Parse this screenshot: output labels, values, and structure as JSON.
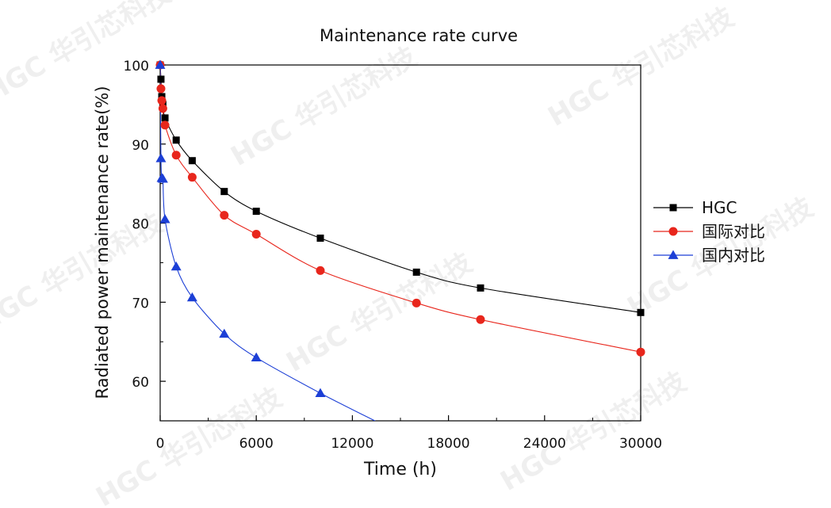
{
  "watermark": {
    "text": "HGC 华引芯科技"
  },
  "chart_data": {
    "type": "line",
    "title": "Maintenance rate curve",
    "xlabel": "Time (h)",
    "ylabel": "Radiated power maintenance rate(%)",
    "xlim": [
      0,
      30000
    ],
    "ylim": [
      55,
      100
    ],
    "xticks": [
      0,
      6000,
      12000,
      18000,
      24000,
      30000
    ],
    "yticks": [
      60,
      70,
      80,
      90,
      100
    ],
    "grid": false,
    "legend_position": "right",
    "series": [
      {
        "name": "HGC",
        "color": "#000000",
        "marker": "square",
        "x": [
          0,
          48,
          100,
          168,
          300,
          1000,
          2000,
          4000,
          6000,
          10000,
          16000,
          20000,
          30000
        ],
        "y": [
          100,
          98.2,
          96.0,
          95.0,
          93.3,
          90.5,
          87.9,
          84.0,
          81.5,
          78.1,
          73.8,
          71.8,
          68.7
        ]
      },
      {
        "name": "国际对比",
        "color": "#e8261c",
        "marker": "circle",
        "x": [
          0,
          48,
          100,
          168,
          300,
          1000,
          2000,
          4000,
          6000,
          10000,
          16000,
          20000,
          30000
        ],
        "y": [
          100,
          97.0,
          95.5,
          94.5,
          92.4,
          88.6,
          85.8,
          81.0,
          78.6,
          74.0,
          69.9,
          67.8,
          63.7
        ],
        "marker_fill": "#e8261c"
      },
      {
        "name": "国内对比",
        "color": "#1c3fd6",
        "marker": "triangle",
        "x": [
          0,
          48,
          100,
          168,
          300,
          1000,
          2000,
          4000,
          6000,
          10000,
          13500
        ],
        "y": [
          100,
          88.2,
          85.7,
          85.6,
          80.5,
          74.5,
          70.6,
          66.0,
          63.0,
          58.5,
          54.9
        ],
        "marker_indices": [
          0,
          1,
          2,
          3,
          4,
          5,
          6,
          7,
          8,
          9
        ]
      }
    ]
  }
}
